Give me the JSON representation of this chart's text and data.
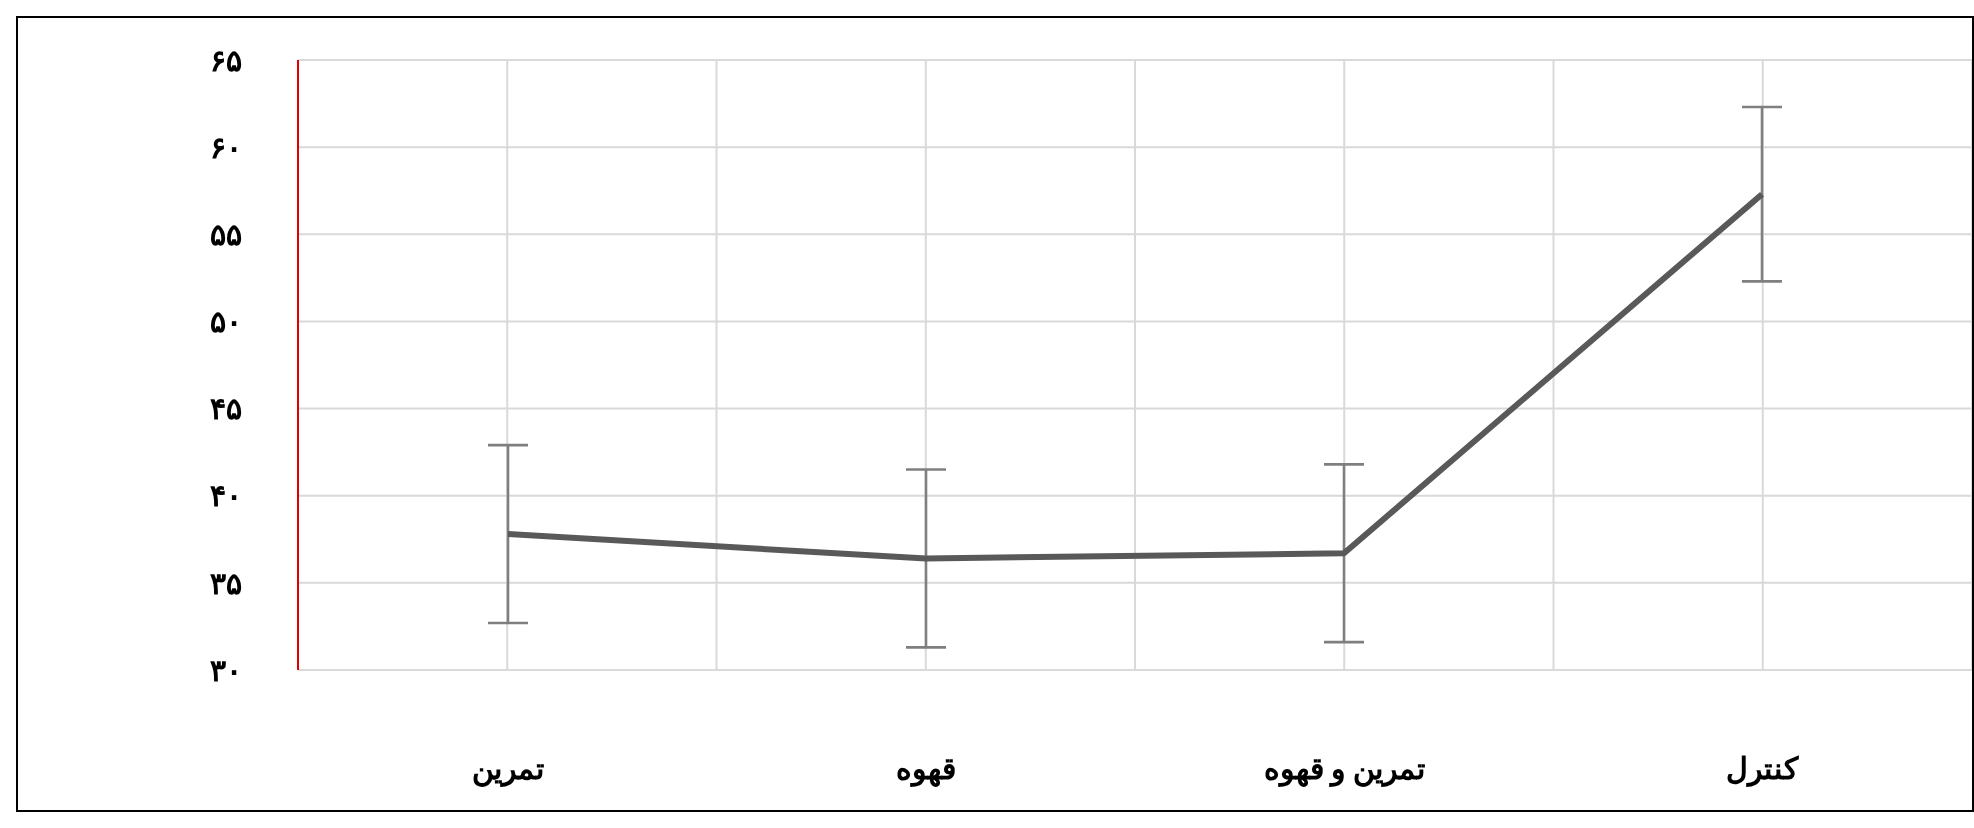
{
  "chart_data": {
    "type": "line",
    "categories": [
      "تمرین",
      "قهوه",
      "تمرین و قهوه",
      "کنترل"
    ],
    "series": [
      {
        "color": "#595959",
        "values": [
          37.8,
          36.4,
          36.7,
          57.3
        ],
        "errors": [
          5.1,
          5.1,
          5.1,
          5
        ]
      }
    ],
    "ylim": [
      30,
      65
    ],
    "yticks": [
      {
        "value": 30,
        "label": "۳۰"
      },
      {
        "value": 35,
        "label": "۳۵"
      },
      {
        "value": 40,
        "label": "۴۰"
      },
      {
        "value": 45,
        "label": "۴۵"
      },
      {
        "value": 50,
        "label": "۵۰"
      },
      {
        "value": 55,
        "label": "۵۵"
      },
      {
        "value": 60,
        "label": "۶۰"
      },
      {
        "value": 65,
        "label": "۶۵"
      }
    ],
    "grid": true,
    "marker": "none",
    "line_style": "solid"
  }
}
